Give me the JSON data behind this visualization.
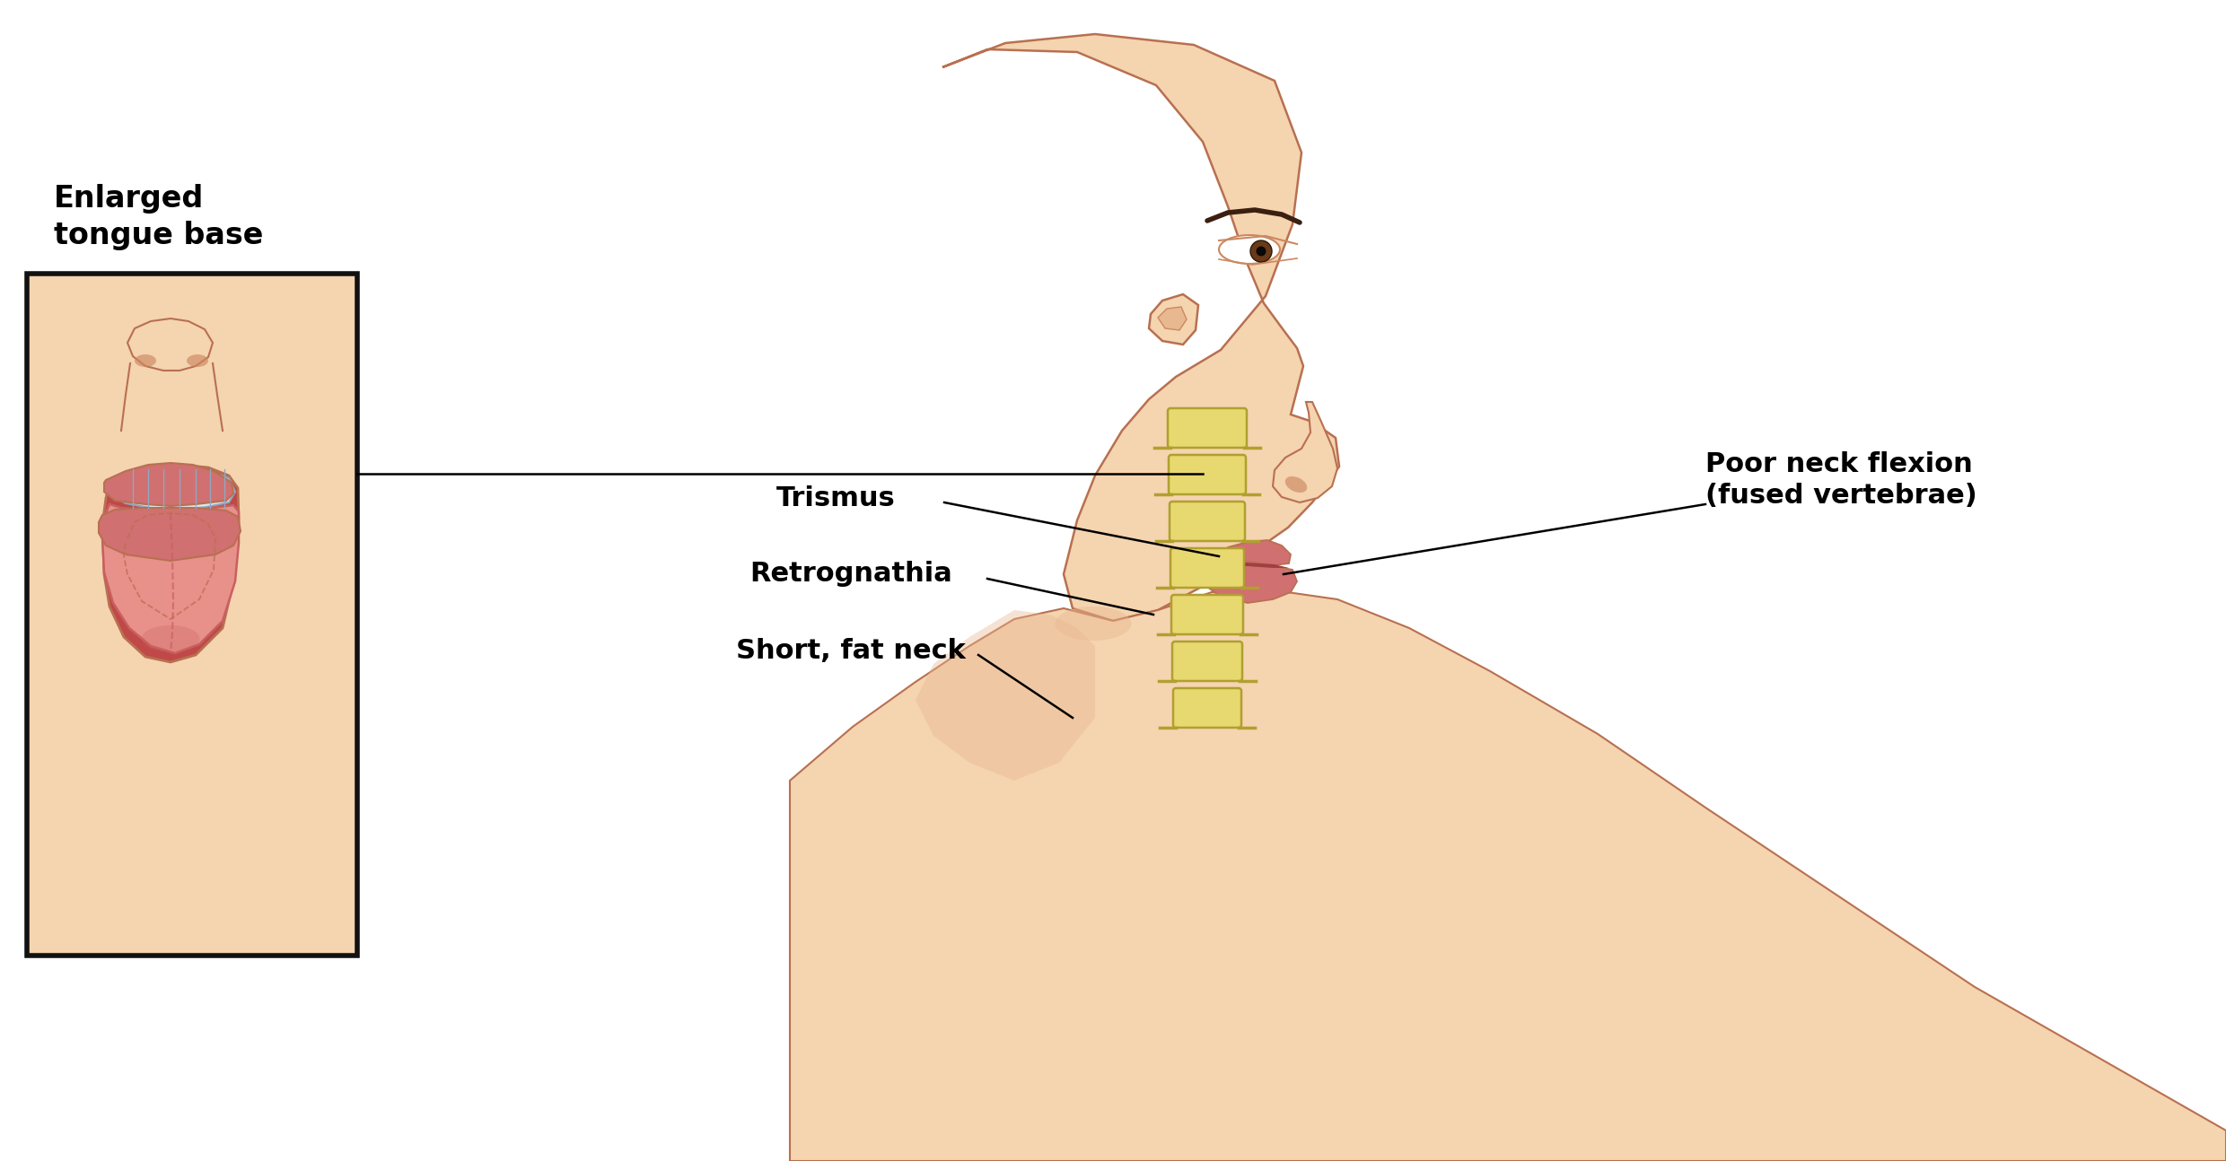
{
  "background_color": "#ffffff",
  "skin_color": "#f5d4b0",
  "skin_shadow": "#e8b890",
  "skin_dark": "#cc8860",
  "skin_outline": "#b87050",
  "tongue_color": "#e8908a",
  "tongue_dark": "#c86060",
  "teeth_color": "#dde8f0",
  "teeth_outline": "#90a8c0",
  "teeth_highlight": "#b0c0d8",
  "spine_color": "#e8d870",
  "spine_outline": "#b0a030",
  "lip_color": "#d07070",
  "line_color": "#000000",
  "text_color": "#000000",
  "inset_border_color": "#111111",
  "labels": {
    "enlarged_tongue": "Enlarged\ntongue base",
    "trismus": "Trismus",
    "retrognathia": "Retrognathia",
    "short_fat_neck": "Short, fat neck",
    "poor_neck_flexion": "Poor neck flexion\n(fused vertebrae)"
  },
  "font_size": 22
}
